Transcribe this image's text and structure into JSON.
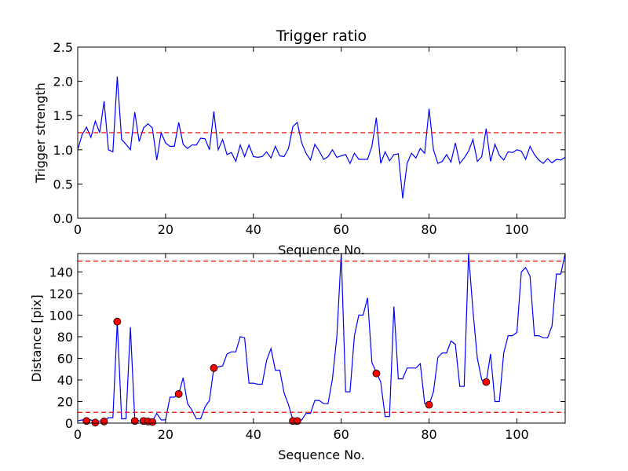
{
  "chart_data": [
    {
      "type": "line",
      "title": "Trigger ratio",
      "xlabel": "Sequence No.",
      "ylabel": "Trigger strength",
      "xlim": [
        0,
        111
      ],
      "ylim": [
        0,
        2.5
      ],
      "xticks": [
        "0",
        "20",
        "40",
        "60",
        "80",
        "100"
      ],
      "yticks": [
        "0.0",
        "0.5",
        "1.0",
        "1.5",
        "2.0",
        "2.5"
      ],
      "series": [
        {
          "color": "#0000ff",
          "x": [
            0,
            1,
            2,
            3,
            4,
            5,
            6,
            7,
            8,
            9,
            10,
            11,
            12,
            13,
            14,
            15,
            16,
            17,
            18,
            19,
            20,
            21,
            22,
            23,
            24,
            25,
            26,
            27,
            28,
            29,
            30,
            31,
            32,
            33,
            34,
            35,
            36,
            37,
            38,
            39,
            40,
            41,
            42,
            43,
            44,
            45,
            46,
            47,
            48,
            49,
            50,
            51,
            52,
            53,
            54,
            55,
            56,
            57,
            58,
            59,
            60,
            61,
            62,
            63,
            64,
            65,
            66,
            67,
            68,
            69,
            70,
            71,
            72,
            73,
            74,
            75,
            76,
            77,
            78,
            79,
            80,
            81,
            82,
            83,
            84,
            85,
            86,
            87,
            88,
            89,
            90,
            91,
            92,
            93,
            94,
            95,
            96,
            97,
            98,
            99,
            100,
            101,
            102,
            103,
            104,
            105,
            106,
            107,
            108,
            109,
            110,
            111
          ],
          "y": [
            1.0,
            1.22,
            1.33,
            1.18,
            1.42,
            1.25,
            1.71,
            1.0,
            0.97,
            2.07,
            1.15,
            1.08,
            1.0,
            1.55,
            1.12,
            1.32,
            1.38,
            1.32,
            0.85,
            1.25,
            1.1,
            1.05,
            1.05,
            1.4,
            1.08,
            1.02,
            1.07,
            1.07,
            1.17,
            1.16,
            1.0,
            1.56,
            1.0,
            1.15,
            0.93,
            0.96,
            0.83,
            1.07,
            0.9,
            1.07,
            0.9,
            0.89,
            0.9,
            0.97,
            0.88,
            1.05,
            0.91,
            0.9,
            1.02,
            1.34,
            1.4,
            1.1,
            0.95,
            0.85,
            1.08,
            0.98,
            0.86,
            0.9,
            1.0,
            0.89,
            0.91,
            0.93,
            0.8,
            0.95,
            0.86,
            0.86,
            0.86,
            1.05,
            1.47,
            0.8,
            0.97,
            0.84,
            0.93,
            0.94,
            0.29,
            0.8,
            0.95,
            0.88,
            1.02,
            0.95,
            1.6,
            1.0,
            0.8,
            0.83,
            0.93,
            0.82,
            1.1,
            0.8,
            0.88,
            0.98,
            1.15,
            0.83,
            0.9,
            1.31,
            0.83,
            1.08,
            0.92,
            0.85,
            0.97,
            0.96,
            1.0,
            0.98,
            0.86,
            1.05,
            0.93,
            0.85,
            0.8,
            0.87,
            0.81,
            0.86,
            0.85,
            0.89
          ]
        }
      ],
      "reference_lines": [
        1.25
      ]
    },
    {
      "type": "line",
      "title": "",
      "xlabel": "Sequence No.",
      "ylabel": "Distance [pix]",
      "xlim": [
        0,
        111
      ],
      "ylim": [
        0,
        157
      ],
      "xticks": [
        "0",
        "20",
        "40",
        "60",
        "80",
        "100"
      ],
      "yticks": [
        "0",
        "20",
        "40",
        "60",
        "80",
        "100",
        "120",
        "140"
      ],
      "series": [
        {
          "color": "#0000ff",
          "x": [
            0,
            1,
            2,
            3,
            4,
            5,
            6,
            7,
            8,
            9,
            10,
            11,
            12,
            13,
            14,
            15,
            16,
            17,
            18,
            19,
            20,
            21,
            22,
            23,
            24,
            25,
            26,
            27,
            28,
            29,
            30,
            31,
            32,
            33,
            34,
            35,
            36,
            37,
            38,
            39,
            40,
            41,
            42,
            43,
            44,
            45,
            46,
            47,
            48,
            49,
            50,
            51,
            52,
            53,
            54,
            55,
            56,
            57,
            58,
            59,
            60,
            61,
            62,
            63,
            64,
            65,
            66,
            67,
            68,
            69,
            70,
            71,
            72,
            73,
            74,
            75,
            76,
            77,
            78,
            79,
            80,
            81,
            82,
            83,
            84,
            85,
            86,
            87,
            88,
            89,
            90,
            91,
            92,
            93,
            94,
            95,
            96,
            97,
            98,
            99,
            100,
            101,
            102,
            103,
            104,
            105,
            106,
            107,
            108,
            109,
            110,
            111
          ],
          "y": [
            2,
            3,
            2,
            3,
            1,
            2,
            2,
            5,
            5,
            94,
            4,
            4,
            89,
            3,
            2,
            2,
            2,
            2,
            9,
            3,
            3,
            24,
            24,
            27,
            42,
            18,
            12,
            4,
            4,
            15,
            21,
            51,
            52,
            53,
            64,
            66,
            66,
            80,
            79,
            37,
            37,
            36,
            36,
            58,
            69,
            49,
            49,
            28,
            17,
            3,
            3,
            3,
            9,
            9,
            21,
            21,
            18,
            18,
            41,
            80,
            157,
            29,
            29,
            81,
            100,
            100,
            116,
            56,
            47,
            38,
            6,
            6,
            108,
            41,
            41,
            51,
            51,
            51,
            55,
            18,
            17,
            29,
            61,
            65,
            65,
            76,
            73,
            34,
            34,
            157,
            104,
            60,
            40,
            38,
            64,
            20,
            20,
            65,
            81,
            81,
            84,
            140,
            144,
            136,
            81,
            81,
            79,
            79,
            90,
            138,
            138,
            157
          ]
        }
      ],
      "markers": {
        "color": "#ff0000",
        "x": [
          2,
          4,
          6,
          9,
          13,
          15,
          16,
          17,
          23,
          31,
          49,
          50,
          68,
          80,
          93
        ],
        "y": [
          2,
          0.5,
          1.5,
          94,
          2,
          2,
          1.5,
          1,
          27,
          51,
          2,
          2,
          46,
          17,
          38
        ]
      },
      "reference_lines": [
        150,
        10
      ]
    }
  ]
}
